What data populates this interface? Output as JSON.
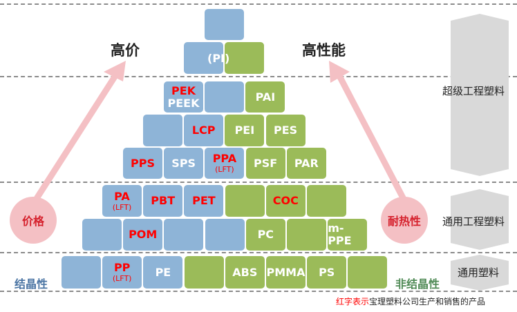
{
  "colors": {
    "crystalline": "#8eb4d7",
    "amorphous": "#9bbb59",
    "highlight": "#ff0000",
    "arrow": "#f4c0c4"
  },
  "labels": {
    "high_price": "高价",
    "high_performance": "高性能",
    "price_circle": "价格",
    "heat_circle": "耐热性",
    "crystalline": "结晶性",
    "amorphous": "非结晶性",
    "note_red": "红字表示",
    "note_rest": "宝理塑料公司生产和销售的产品",
    "pi": "(PI)"
  },
  "tiers": [
    {
      "label": "超级工程塑料"
    },
    {
      "label": "通用工程塑料"
    },
    {
      "label": "通用塑料"
    }
  ],
  "rows": [
    [
      {
        "type": "blue",
        "label": ""
      }
    ],
    [
      {
        "type": "blue",
        "label": ""
      },
      {
        "type": "green",
        "label": ""
      }
    ],
    [
      {
        "type": "blue",
        "label": "PEK",
        "label2": "PEEK",
        "red": true
      },
      {
        "type": "blue",
        "label": ""
      },
      {
        "type": "green",
        "label": "PAI"
      }
    ],
    [
      {
        "type": "blue",
        "label": ""
      },
      {
        "type": "blue",
        "label": "LCP",
        "red": true
      },
      {
        "type": "green",
        "label": "PEI"
      },
      {
        "type": "green",
        "label": "PES"
      }
    ],
    [
      {
        "type": "blue",
        "label": "PPS",
        "red": true
      },
      {
        "type": "blue",
        "label": "SPS"
      },
      {
        "type": "blue",
        "label": "PPA",
        "sub": "(LFT)",
        "red": true
      },
      {
        "type": "green",
        "label": "PSF"
      },
      {
        "type": "green",
        "label": "PAR"
      }
    ],
    [
      {
        "type": "blue",
        "label": "PA",
        "sub": "(LFT)",
        "red": true
      },
      {
        "type": "blue",
        "label": "PBT",
        "red": true
      },
      {
        "type": "blue",
        "label": "PET",
        "red": true
      },
      {
        "type": "green",
        "label": ""
      },
      {
        "type": "green",
        "label": "COC",
        "red": true
      },
      {
        "type": "green",
        "label": ""
      }
    ],
    [
      {
        "type": "blue",
        "label": ""
      },
      {
        "type": "blue",
        "label": "POM",
        "red": true
      },
      {
        "type": "blue",
        "label": ""
      },
      {
        "type": "blue",
        "label": ""
      },
      {
        "type": "green",
        "label": "PC"
      },
      {
        "type": "green",
        "label": ""
      },
      {
        "type": "green",
        "label": "m-PPE"
      }
    ],
    [
      {
        "type": "blue",
        "label": ""
      },
      {
        "type": "blue",
        "label": "PP",
        "sub": "(LFT)",
        "red": true
      },
      {
        "type": "blue",
        "label": "PE"
      },
      {
        "type": "green",
        "label": ""
      },
      {
        "type": "green",
        "label": "ABS"
      },
      {
        "type": "green",
        "label": "PMMA"
      },
      {
        "type": "green",
        "label": "PS"
      },
      {
        "type": "green",
        "label": ""
      }
    ]
  ]
}
